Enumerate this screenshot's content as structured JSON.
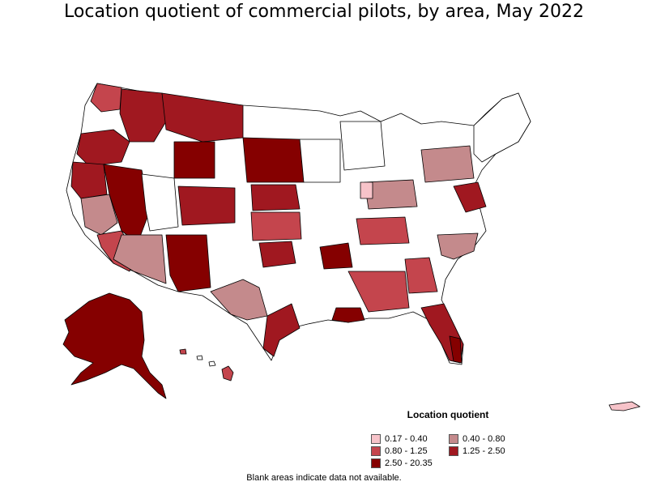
{
  "title": "Location quotient of commercial pilots, by area, May 2022",
  "legend": {
    "title": "Location quotient",
    "items": [
      {
        "label": "0.17 - 0.40",
        "color": "#f7c3c9"
      },
      {
        "label": "0.40 - 0.80",
        "color": "#c48a8c"
      },
      {
        "label": "0.80 - 1.25",
        "color": "#c4454d"
      },
      {
        "label": "1.25 - 2.50",
        "color": "#a01820"
      },
      {
        "label": "2.50 - 20.35",
        "color": "#850000"
      }
    ]
  },
  "footnote": "Blank areas indicate data not available.",
  "colors": {
    "none": "#ffffff",
    "outline": "#000000"
  }
}
